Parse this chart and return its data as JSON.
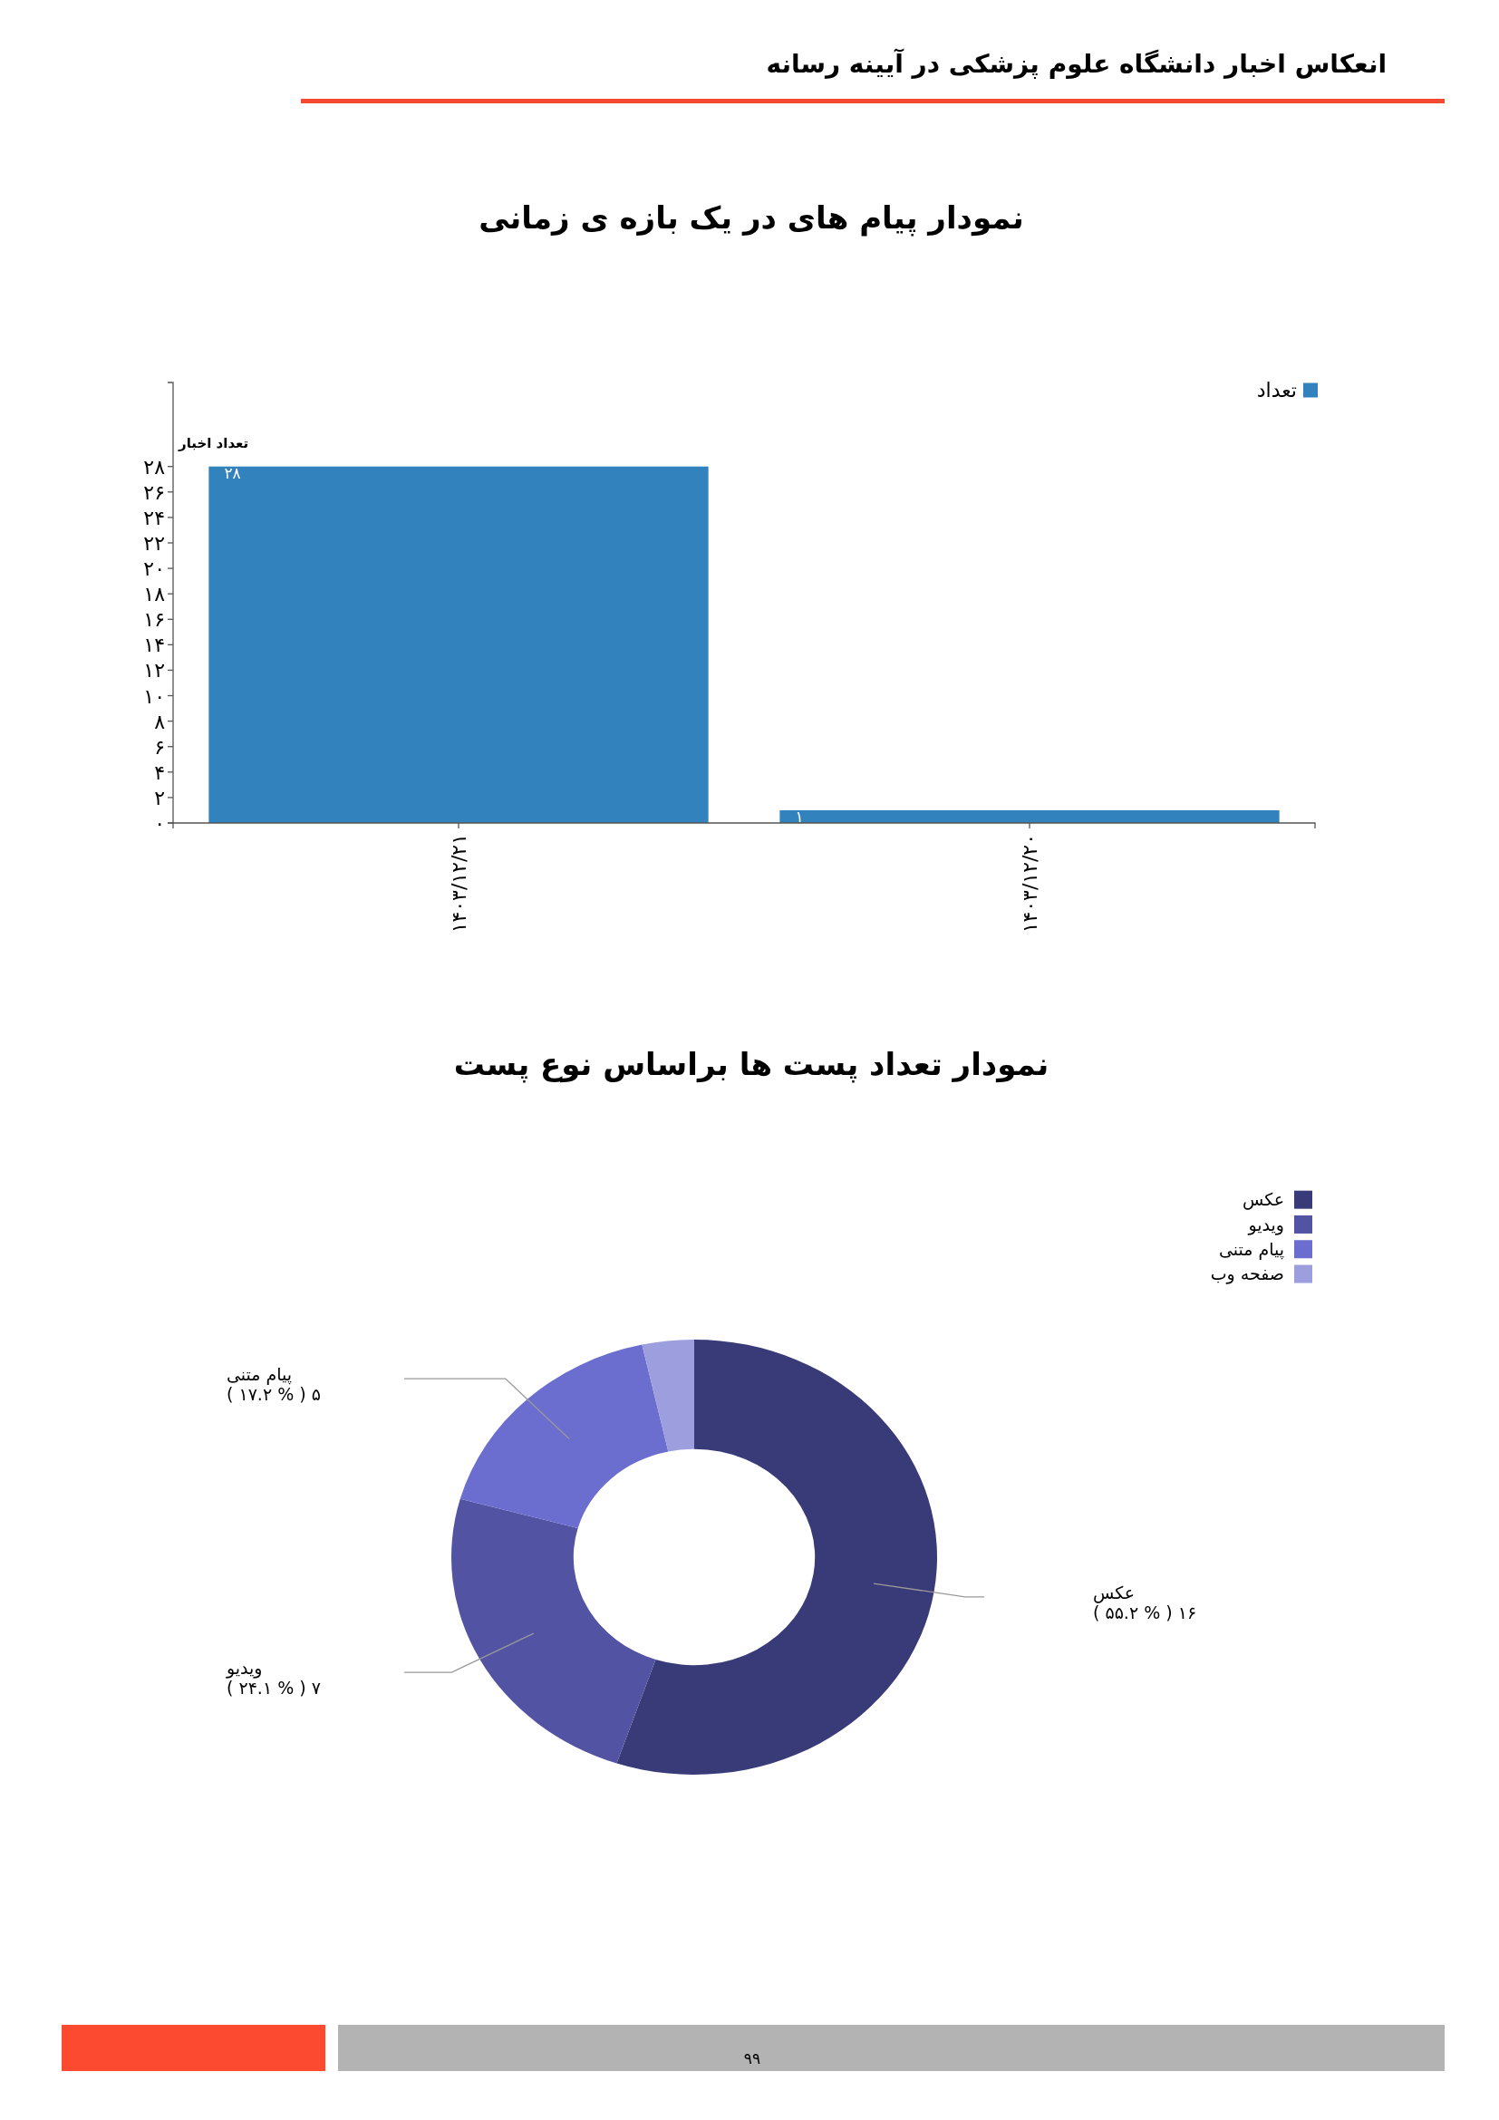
{
  "chart_data": [
    {
      "type": "bar",
      "title": "نمودار پیام های در یک بازه ی زمانی",
      "annotations": [
        "انعکاس اخبار دانشگاه علوم پزشکی در آیینه رسانه"
      ],
      "ylabel": "تعداد اخبار",
      "categories": [
        "۱۴۰۳/۱۲/۲۱",
        "۱۴۰۳/۱۲/۲۰"
      ],
      "series": [
        {
          "name": "تعداد",
          "color": "#3182bd",
          "values": [
            28,
            1
          ],
          "value_labels": [
            "۲۸",
            "۱"
          ]
        }
      ],
      "ylim": [
        0,
        34.6
      ],
      "yticks": [
        {
          "value": 0,
          "label": "۰"
        },
        {
          "value": 2,
          "label": "۲"
        },
        {
          "value": 4,
          "label": "۴"
        },
        {
          "value": 6,
          "label": "۶"
        },
        {
          "value": 8,
          "label": "۸"
        },
        {
          "value": 10,
          "label": "۱۰"
        },
        {
          "value": 12,
          "label": "۱۲"
        },
        {
          "value": 14,
          "label": "۱۴"
        },
        {
          "value": 16,
          "label": "۱۶"
        },
        {
          "value": 18,
          "label": "۱۸"
        },
        {
          "value": 20,
          "label": "۲۰"
        },
        {
          "value": 22,
          "label": "۲۲"
        },
        {
          "value": 24,
          "label": "۲۴"
        },
        {
          "value": 26,
          "label": "۲۶"
        },
        {
          "value": 28,
          "label": "۲۸"
        }
      ],
      "legend": "top right"
    },
    {
      "type": "donut",
      "title": "نمودار تعداد پست ها براساس نوع پست",
      "annotations": [
        "۹۹"
      ],
      "categories": [
        "عکس",
        "ویدیو",
        "پیام متنی",
        "صفحه وب"
      ],
      "values": [
        16,
        7,
        5,
        1
      ],
      "colors": [
        "#393b79",
        "#5254a3",
        "#6b6ecf",
        "#9c9ede"
      ],
      "value_labels": [
        "( ۵۵.۲ % ) ۱۶",
        "( ۲۴.۱ % ) ۷",
        "( ۱۷.۲ % ) ۵",
        null
      ],
      "legend": "top right"
    }
  ]
}
